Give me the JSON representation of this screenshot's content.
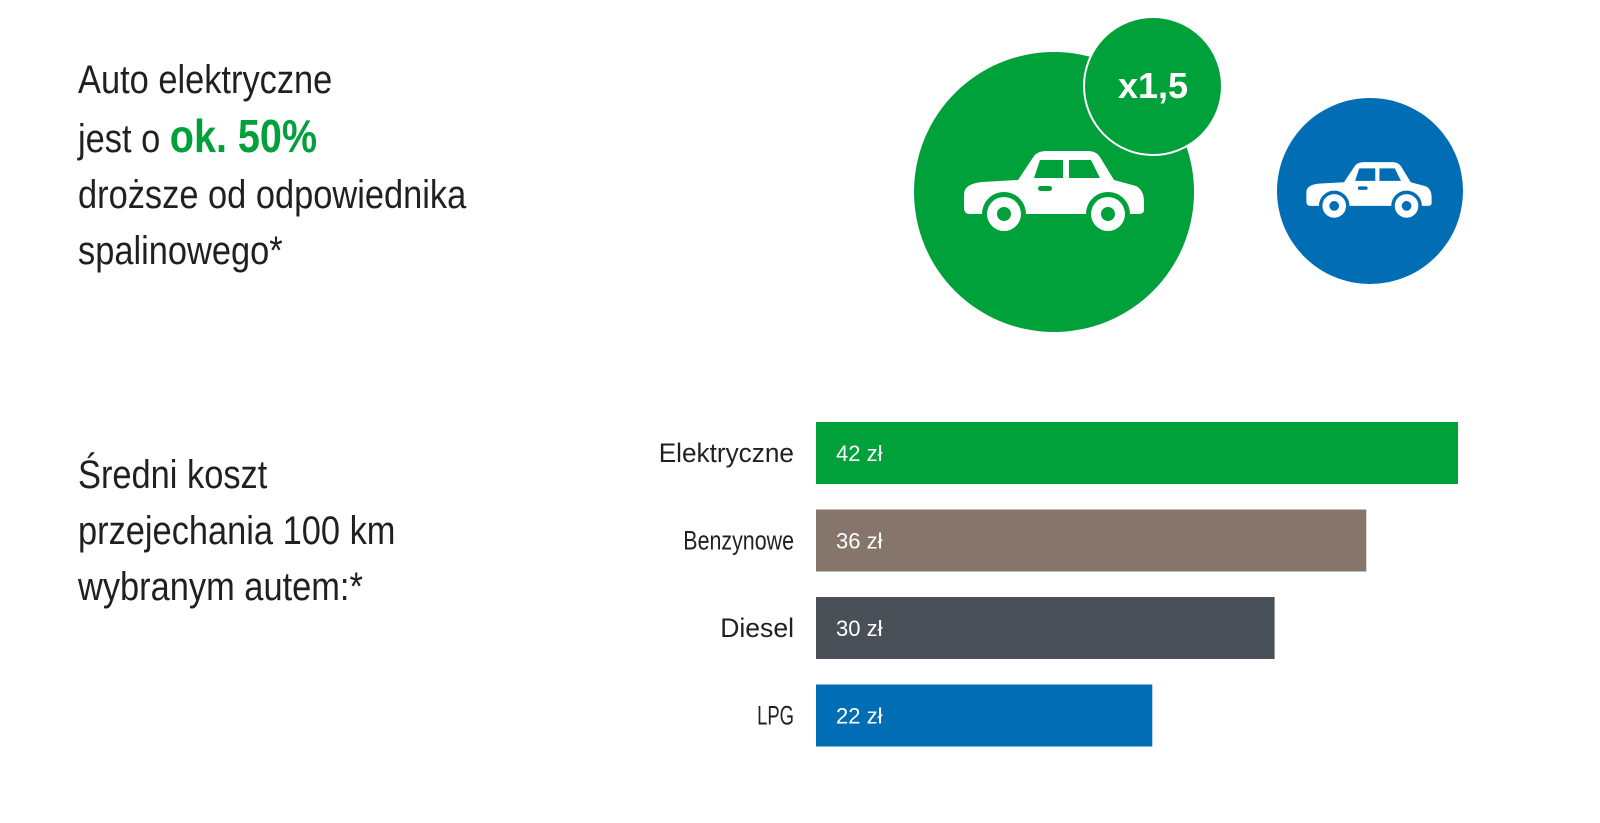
{
  "headline": {
    "line1": "Auto elektryczne",
    "line2_prefix": "jest o ",
    "line2_highlight": "ok. 50%",
    "line3": "droższe od odpowiednika",
    "line4": "spalinowego*"
  },
  "comparison": {
    "multiplier": "x1,5",
    "electric_icon": "car-icon",
    "combustion_icon": "car-icon",
    "electric_color": "#00a03a",
    "combustion_color": "#006db5"
  },
  "subtitle": {
    "line1": "Średni koszt",
    "line2": "przejechania 100 km",
    "line3": "wybranym autem:*"
  },
  "chart_data": {
    "type": "bar",
    "orientation": "horizontal",
    "categories": [
      "Elektryczne",
      "Benzynowe",
      "Diesel",
      "LPG"
    ],
    "values": [
      42,
      36,
      30,
      22
    ],
    "value_labels": [
      "42 zł",
      "36 zł",
      "30 zł",
      "22 zł"
    ],
    "colors": [
      "#00a03a",
      "#85756b",
      "#4a5057",
      "#006db5"
    ],
    "unit": "zł",
    "grid": false,
    "legend": "none"
  }
}
